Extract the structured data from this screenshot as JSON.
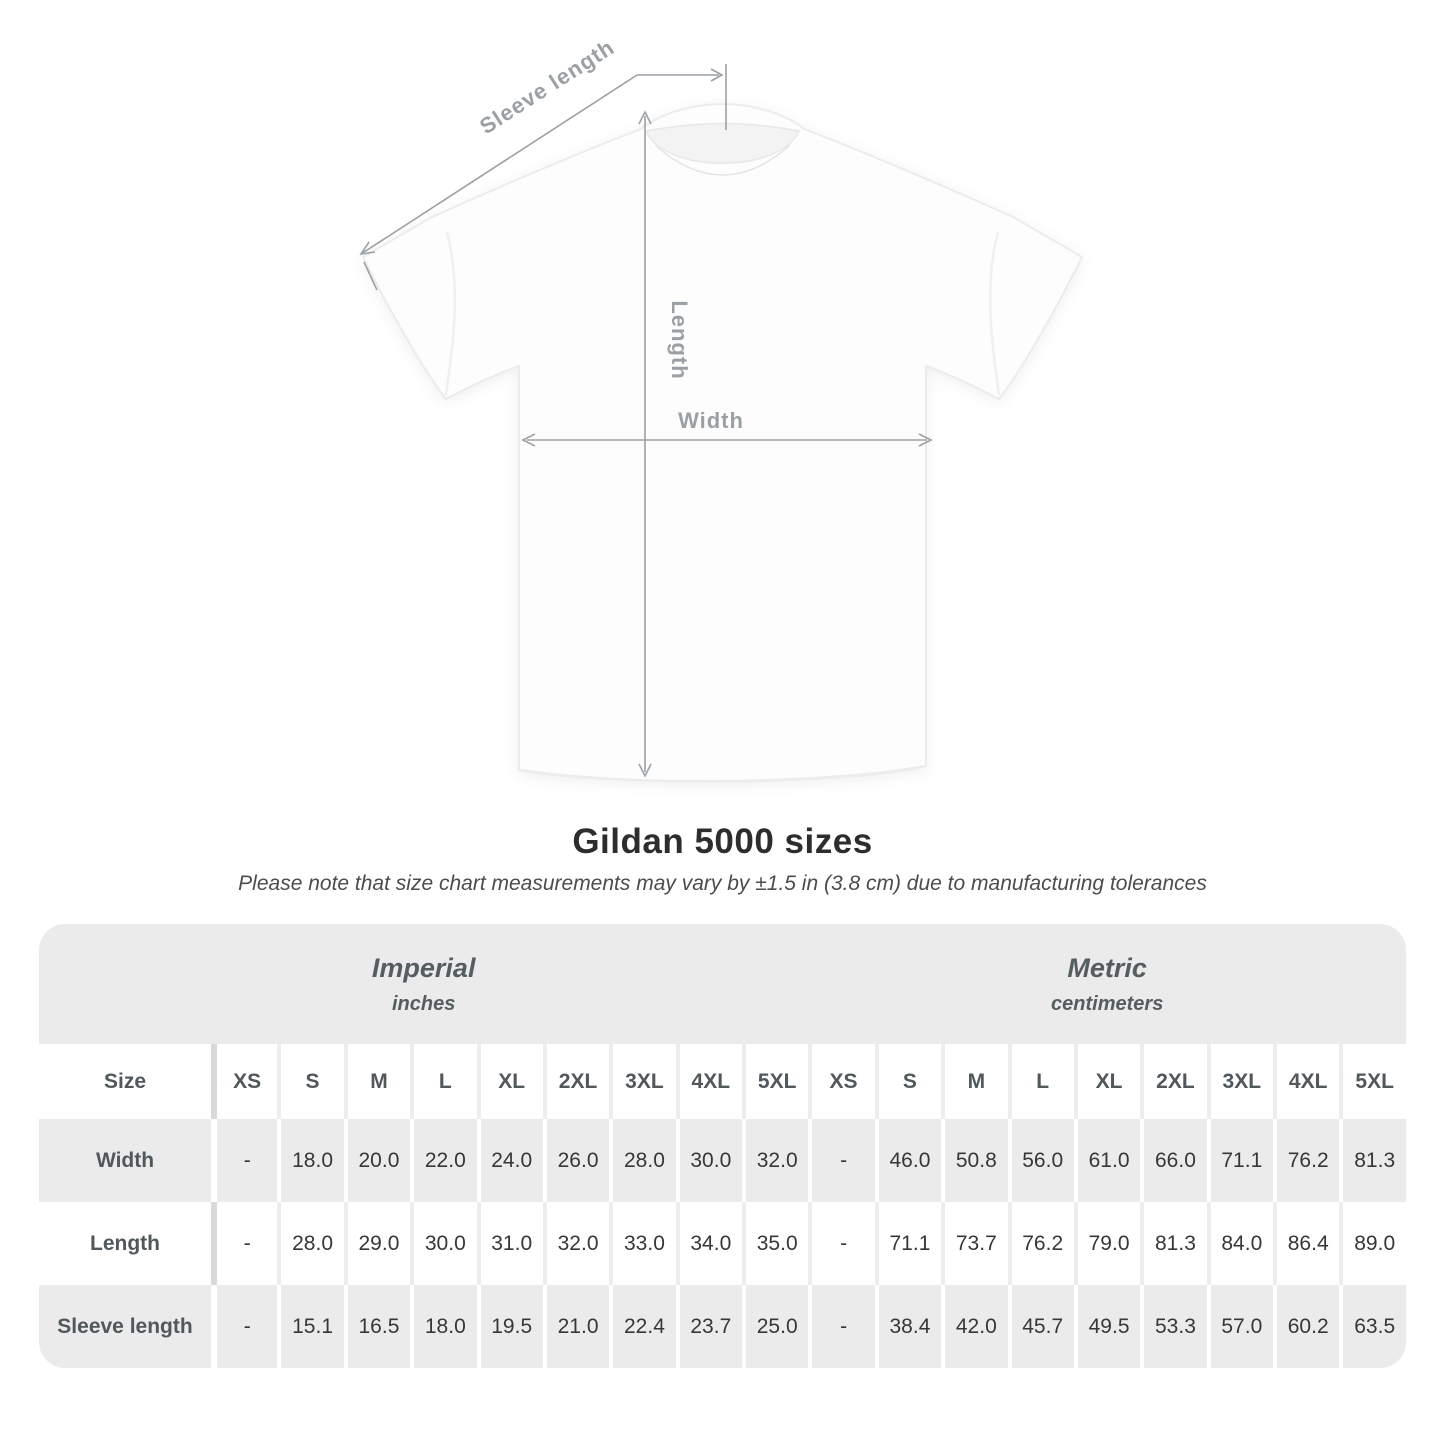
{
  "diagram": {
    "labels": {
      "sleeve_length": "Sleeve length",
      "length": "Length",
      "width": "Width"
    },
    "line_color": "#9ba1a5"
  },
  "chart_data": {
    "type": "table",
    "title": "Gildan 5000 sizes",
    "note": "Please note that size chart measurements may vary by ±1.5 in (3.8 cm) due to manufacturing tolerances",
    "size_label": "Size",
    "sizes": [
      "XS",
      "S",
      "M",
      "L",
      "XL",
      "2XL",
      "3XL",
      "4XL",
      "5XL"
    ],
    "sections": [
      {
        "name": "Imperial",
        "unit": "inches"
      },
      {
        "name": "Metric",
        "unit": "centimeters"
      }
    ],
    "rows": [
      {
        "label": "Width",
        "imperial": [
          "-",
          "18.0",
          "20.0",
          "22.0",
          "24.0",
          "26.0",
          "28.0",
          "30.0",
          "32.0"
        ],
        "metric": [
          "-",
          "46.0",
          "50.8",
          "56.0",
          "61.0",
          "66.0",
          "71.1",
          "76.2",
          "81.3"
        ]
      },
      {
        "label": "Length",
        "imperial": [
          "-",
          "28.0",
          "29.0",
          "30.0",
          "31.0",
          "32.0",
          "33.0",
          "34.0",
          "35.0"
        ],
        "metric": [
          "-",
          "71.1",
          "73.7",
          "76.2",
          "79.0",
          "81.3",
          "84.0",
          "86.4",
          "89.0"
        ]
      },
      {
        "label": "Sleeve length",
        "imperial": [
          "-",
          "15.1",
          "16.5",
          "18.0",
          "19.5",
          "21.0",
          "22.4",
          "23.7",
          "25.0"
        ],
        "metric": [
          "-",
          "38.4",
          "42.0",
          "45.7",
          "49.5",
          "53.3",
          "57.0",
          "60.2",
          "63.5"
        ]
      }
    ],
    "colors": {
      "row_stripe": "#ebebeb",
      "text_dark": "#373737",
      "text_header": "#51585c"
    }
  }
}
